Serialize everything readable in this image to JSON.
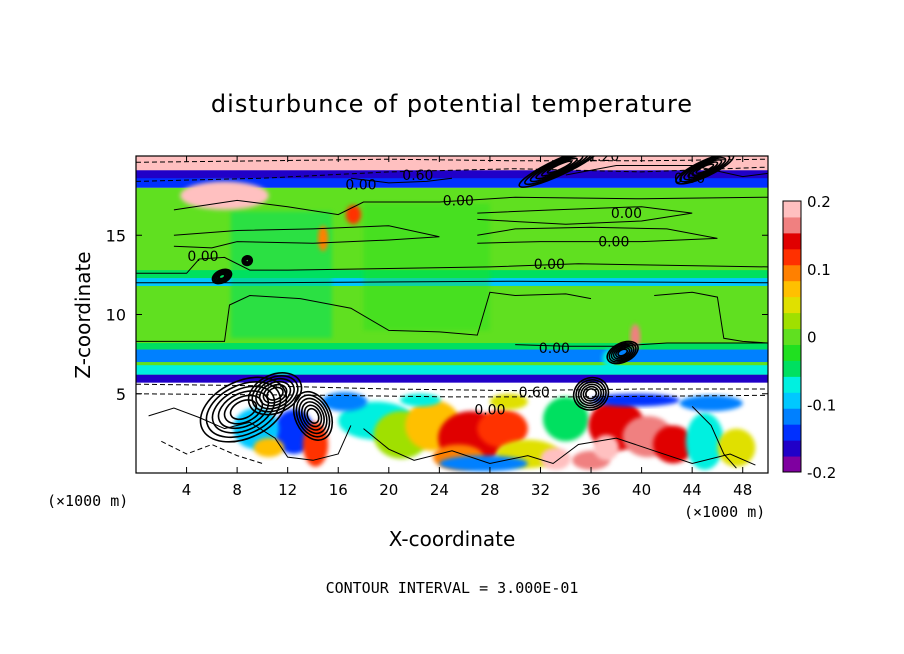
{
  "chart_data": {
    "type": "heatmap",
    "title": "disturbunce of potential temperature",
    "xlabel": "X-coordinate",
    "ylabel": "Z-coordinate",
    "x_unit_left": "(×1000 m)",
    "x_unit_right": "(×1000 m)",
    "xlim": [
      0,
      50
    ],
    "ylim": [
      0,
      20
    ],
    "x_ticks": [
      "4",
      "8",
      "12",
      "16",
      "20",
      "24",
      "28",
      "32",
      "36",
      "40",
      "44",
      "48"
    ],
    "x_tick_values": [
      4,
      8,
      12,
      16,
      20,
      24,
      28,
      32,
      36,
      40,
      44,
      48
    ],
    "y_ticks": [
      "5",
      "10",
      "15"
    ],
    "y_tick_values": [
      5,
      10,
      15
    ],
    "colorbar": {
      "range": [
        -0.2,
        0.2
      ],
      "tick_labels": [
        "0.2",
        "0.1",
        "0",
        "-0.1",
        "-0.2"
      ],
      "tick_values": [
        0.2,
        0.1,
        0,
        -0.1,
        -0.2
      ],
      "colors": [
        "#7f00a0",
        "#2000c8",
        "#0030ff",
        "#0080ff",
        "#00c8ff",
        "#00f0e0",
        "#00e060",
        "#20e020",
        "#60e020",
        "#a0e000",
        "#e0e000",
        "#ffc000",
        "#ff8000",
        "#ff3000",
        "#e00000",
        "#f08080",
        "#ffc0c0"
      ]
    },
    "contour_labels": [
      {
        "text": "0.00",
        "x": 17.8,
        "y": 18.2
      },
      {
        "text": "0.60",
        "x": 22.3,
        "y": 18.8
      },
      {
        "text": "1.20",
        "x": 37.0,
        "y": 20.0
      },
      {
        "text": "0.00",
        "x": 43.8,
        "y": 18.6
      },
      {
        "text": "0.00",
        "x": 25.5,
        "y": 17.2
      },
      {
        "text": "0.00",
        "x": 38.8,
        "y": 16.4
      },
      {
        "text": "0.00",
        "x": 37.8,
        "y": 14.6
      },
      {
        "text": "0.00",
        "x": 32.7,
        "y": 13.2
      },
      {
        "text": "0.00",
        "x": 5.3,
        "y": 13.7
      },
      {
        "text": "0.00",
        "x": 33.1,
        "y": 7.9
      },
      {
        "text": "0.60",
        "x": 31.5,
        "y": 5.1
      },
      {
        "text": "0.00",
        "x": 28.0,
        "y": 4.0
      }
    ],
    "contour_interval_text": "CONTOUR INTERVAL = 3.000E-01"
  }
}
